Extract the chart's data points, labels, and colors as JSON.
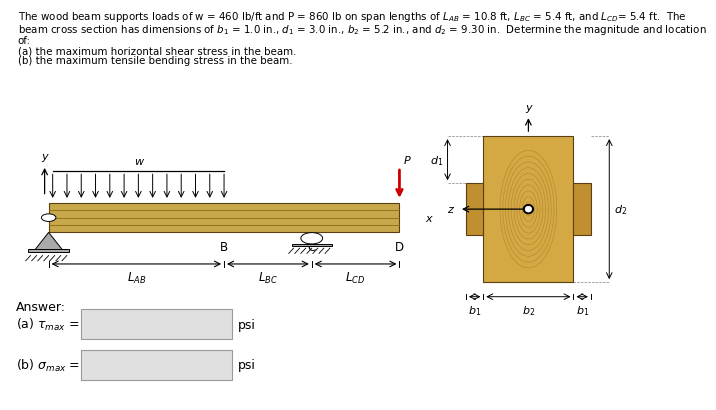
{
  "bg_color": "#ffffff",
  "beam_color": "#c8a84b",
  "beam_line_color": "#8B6914",
  "beam_edge_color": "#5a4010",
  "wood_light": "#d4a843",
  "wood_mid": "#c09030",
  "wood_dark": "#a07828",
  "red_arrow": "#cc0000",
  "gray_support": "#888888",
  "answer_box_color": "#e0e0e0",
  "answer_box_border": "#999999",
  "text_lines": [
    "The wood beam supports loads of w = 460 lb/ft and P = 860 lb on span lengths of $L_{AB}$ = 10.8 ft, $L_{BC}$ = 5.4 ft, and $L_{CD}$= 5.4 ft.  The",
    "beam cross section has dimensions of $b_1$ = 1.0 in., $d_1$ = 3.0 in., $b_2$ = 5.2 in., and $d_2$ = 9.30 in.  Determine the magnitude and location",
    "of:",
    "(a) the maximum horizontal shear stress in the beam.",
    "(b) the maximum tensile bending stress in the beam."
  ]
}
